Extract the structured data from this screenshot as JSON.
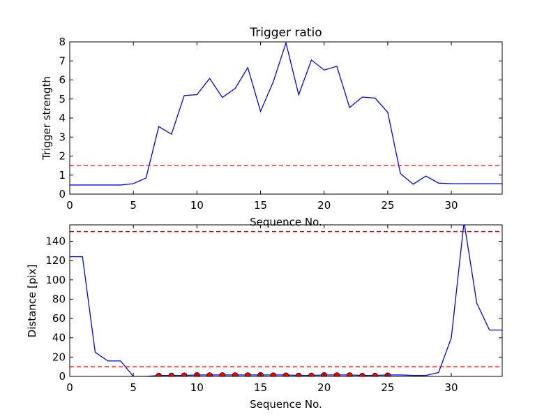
{
  "chart_data": [
    {
      "type": "line",
      "title": "Trigger ratio",
      "xlabel": "Sequence No.",
      "ylabel": "Trigger strength",
      "xlim": [
        0,
        34
      ],
      "ylim": [
        0,
        8
      ],
      "xticks": [
        0,
        5,
        10,
        15,
        20,
        25,
        30
      ],
      "yticks": [
        0,
        1,
        2,
        3,
        4,
        5,
        6,
        7,
        8
      ],
      "grid": false,
      "series": [
        {
          "color": "#0000ff",
          "style": "solid",
          "x": [
            0,
            1,
            2,
            3,
            4,
            5,
            6,
            7,
            8,
            9,
            10,
            11,
            12,
            13,
            14,
            15,
            16,
            17,
            18,
            19,
            20,
            21,
            22,
            23,
            24,
            25,
            26,
            27,
            28,
            29,
            30,
            31,
            32,
            33,
            34
          ],
          "values": [
            0.48,
            0.48,
            0.48,
            0.48,
            0.48,
            0.55,
            0.85,
            3.55,
            3.15,
            5.18,
            5.23,
            6.08,
            5.08,
            5.55,
            6.65,
            4.35,
            5.9,
            7.95,
            5.22,
            7.05,
            6.52,
            6.72,
            4.55,
            5.1,
            5.05,
            4.3,
            1.08,
            0.52,
            0.95,
            0.58,
            0.55,
            0.55,
            0.55,
            0.55,
            0.55
          ]
        },
        {
          "color": "#ff0000",
          "style": "dashed",
          "threshold": 1.5
        }
      ]
    },
    {
      "type": "line",
      "title": "",
      "xlabel": "Sequence No.",
      "ylabel": "Distance [pix]",
      "xlim": [
        0,
        34
      ],
      "ylim": [
        0,
        157
      ],
      "xticks": [
        0,
        5,
        10,
        15,
        20,
        25,
        30
      ],
      "yticks": [
        0,
        20,
        40,
        60,
        80,
        100,
        120,
        140
      ],
      "grid": false,
      "series": [
        {
          "color": "#0000ff",
          "style": "solid",
          "x": [
            0,
            1,
            2,
            3,
            4,
            5,
            6,
            7,
            8,
            9,
            10,
            11,
            12,
            13,
            14,
            15,
            16,
            17,
            18,
            19,
            20,
            21,
            22,
            23,
            24,
            25,
            26,
            27,
            28,
            29,
            30,
            31,
            32,
            33,
            34
          ],
          "values": [
            124,
            124,
            25,
            16,
            16,
            0,
            0,
            1,
            1,
            1,
            1.5,
            1.5,
            1.5,
            1.5,
            1.5,
            1.5,
            1.5,
            1.5,
            1,
            1,
            1.5,
            1.5,
            1.5,
            1,
            1,
            1.5,
            1.5,
            1,
            1,
            4,
            40,
            160,
            76,
            48,
            48
          ]
        },
        {
          "color": "#ff0000",
          "style": "markers",
          "x": [
            7,
            8,
            9,
            10,
            11,
            12,
            13,
            14,
            15,
            16,
            17,
            18,
            19,
            20,
            21,
            22,
            23,
            24,
            25
          ],
          "values": [
            0.5,
            0.6,
            0.8,
            1.2,
            1.0,
            1.1,
            1.0,
            1.0,
            1.2,
            0.9,
            0.8,
            0.6,
            0.6,
            1.2,
            1.0,
            1.0,
            0.4,
            0.5,
            0.8
          ]
        },
        {
          "color": "#ff0000",
          "style": "dashed",
          "threshold": 150
        },
        {
          "color": "#ff0000",
          "style": "dashed",
          "threshold": 10
        }
      ]
    }
  ]
}
